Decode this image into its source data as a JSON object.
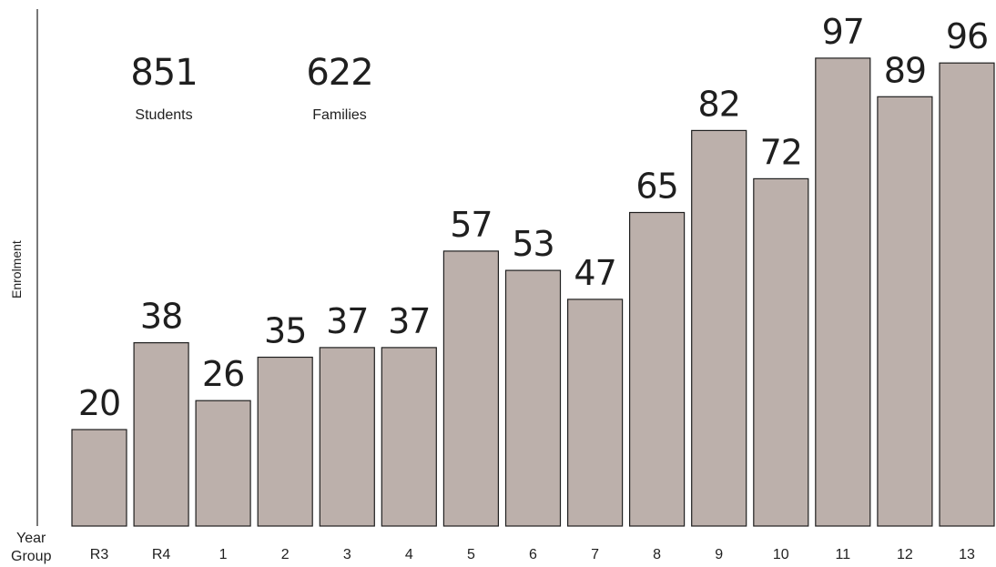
{
  "chart_data": {
    "type": "bar",
    "title": "",
    "xlabel": "Year Group",
    "xlabel_lines": [
      "Year",
      "Group"
    ],
    "ylabel": "Enrolment",
    "categories": [
      "R3",
      "R4",
      "1",
      "2",
      "3",
      "4",
      "5",
      "6",
      "7",
      "8",
      "9",
      "10",
      "11",
      "12",
      "13"
    ],
    "values": [
      20,
      38,
      26,
      35,
      37,
      37,
      57,
      53,
      47,
      65,
      82,
      72,
      97,
      89,
      96
    ],
    "ylim": [
      0,
      100
    ],
    "grid": false,
    "legend": "none",
    "bar_color": "#bcb0ab",
    "bar_outline": "#1f1f1f",
    "data_labels": true
  },
  "stats": {
    "students": {
      "value": "851",
      "label": "Students"
    },
    "families": {
      "value": "622",
      "label": "Families"
    }
  }
}
